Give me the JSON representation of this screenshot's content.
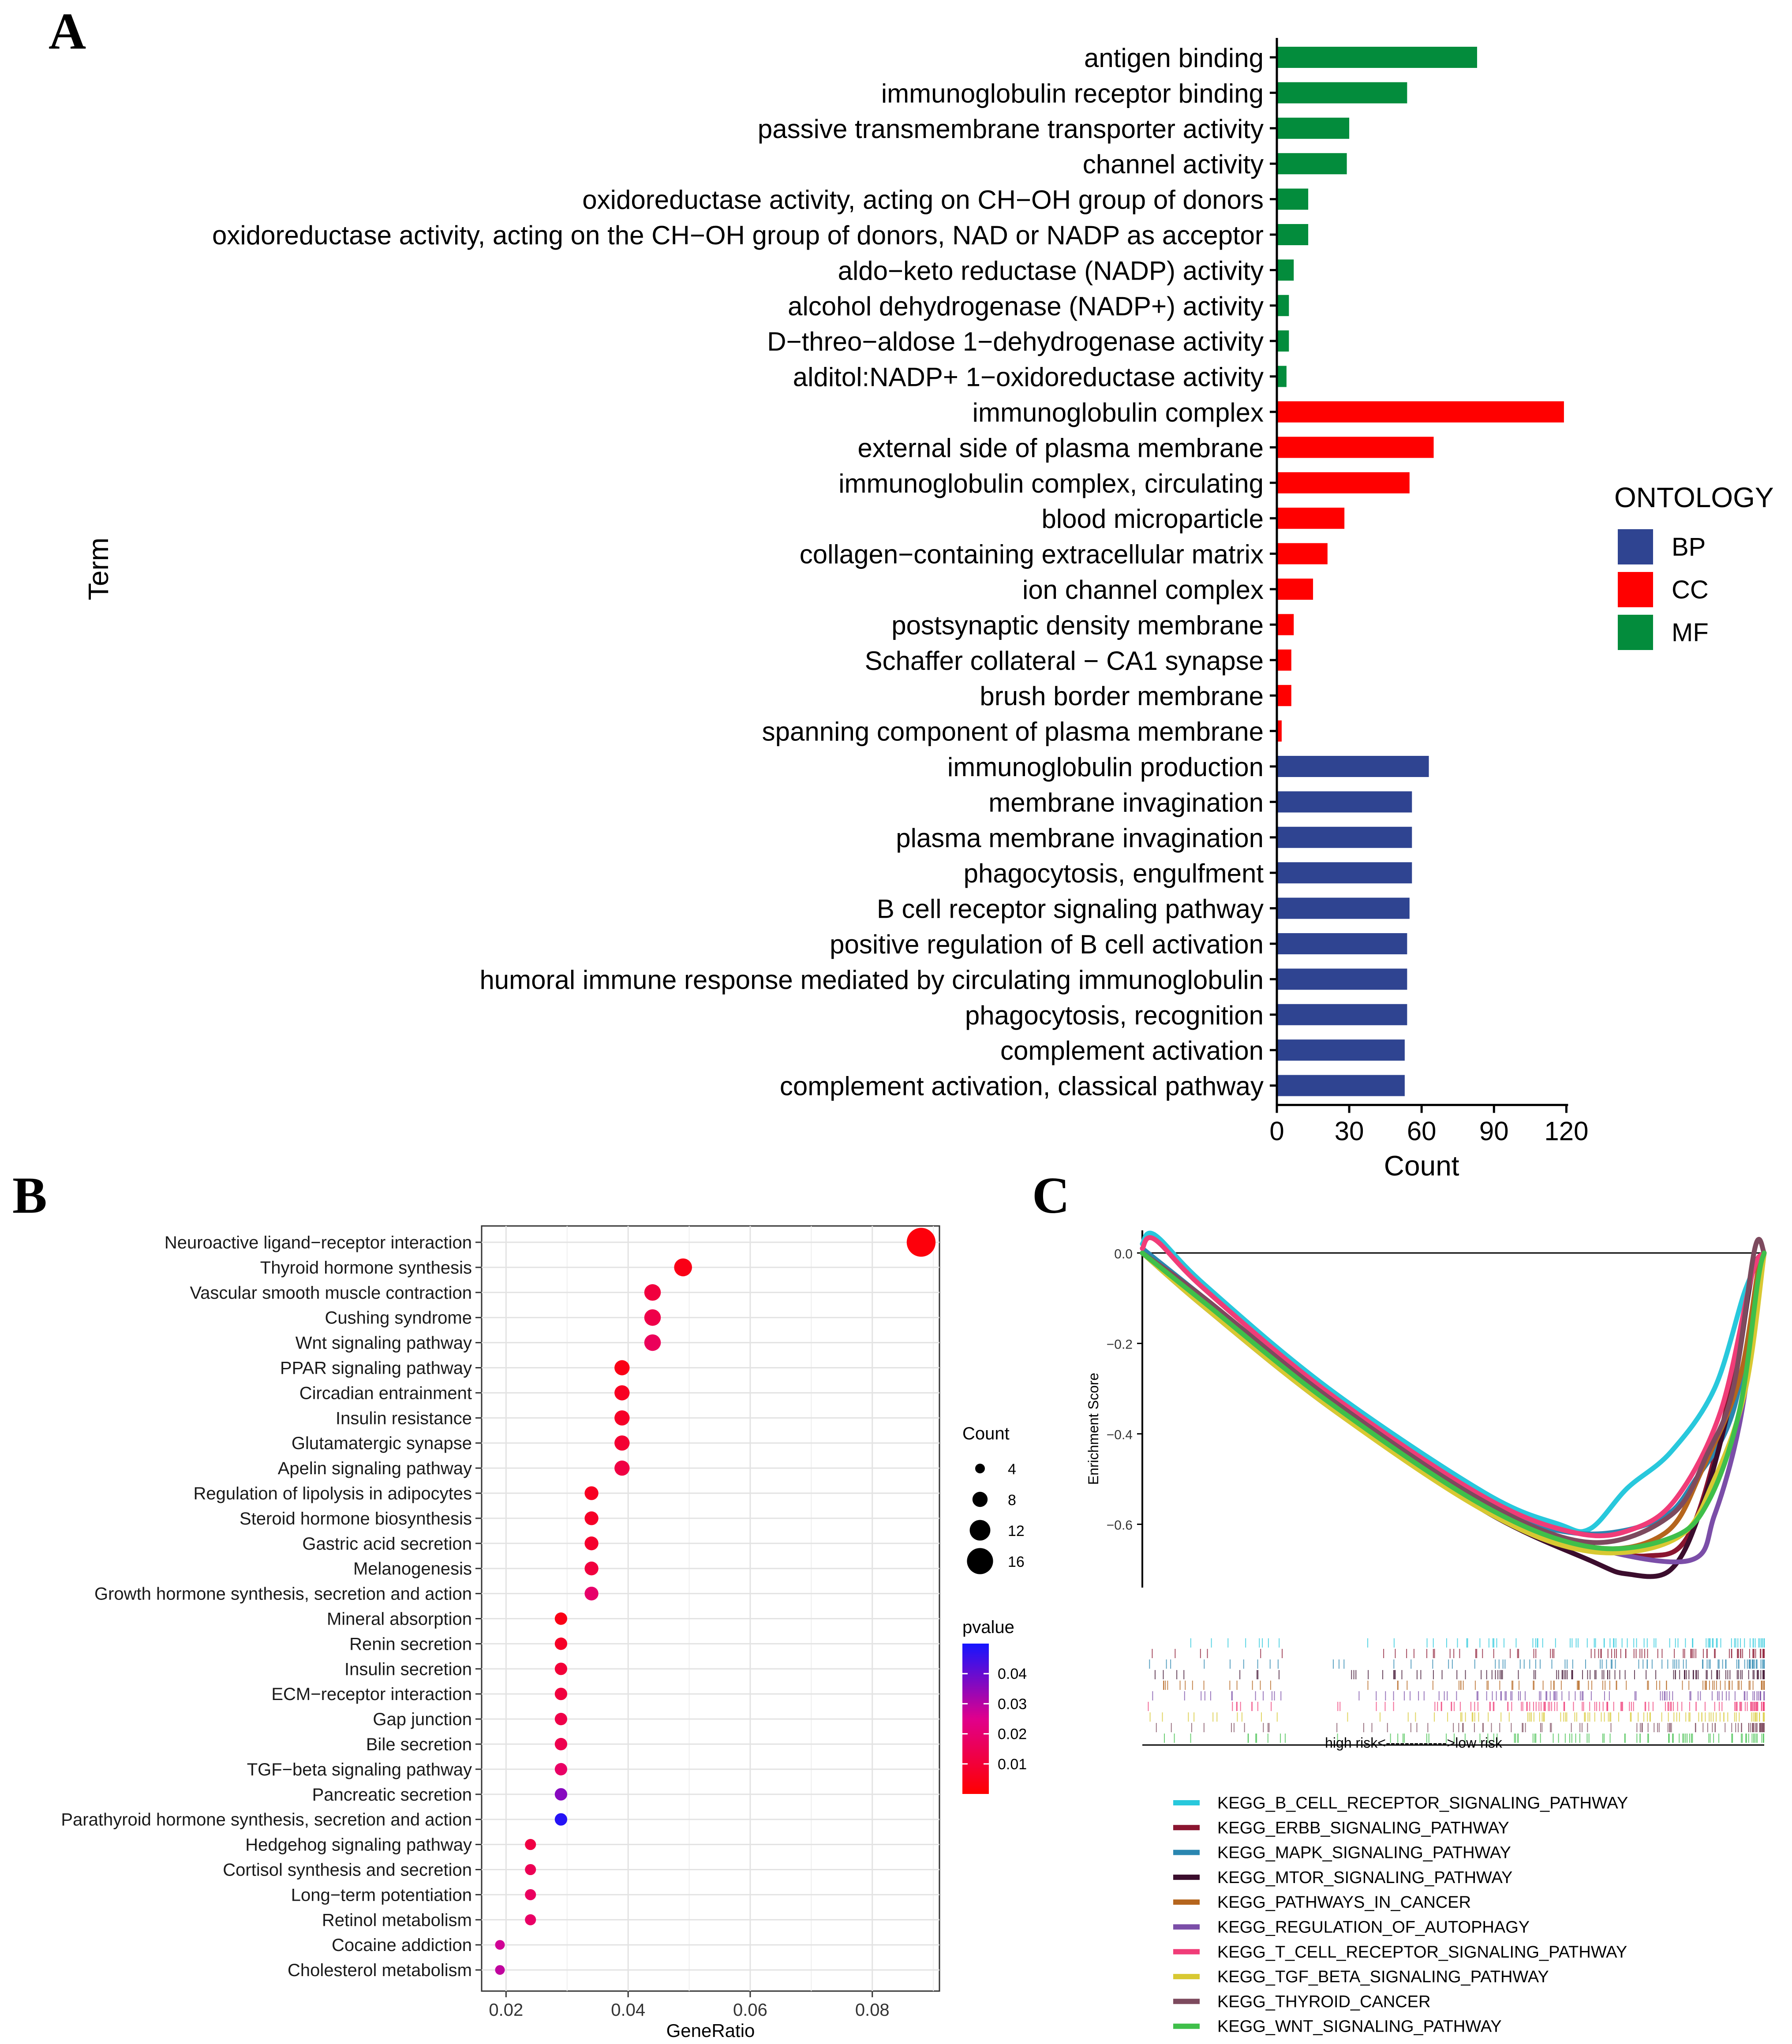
{
  "panels": {
    "a": "A",
    "b": "B",
    "c": "C"
  },
  "chart_data": [
    {
      "type": "bar",
      "orientation": "horizontal",
      "xlabel": "Count",
      "ylabel": "Term",
      "xlim": [
        0,
        120
      ],
      "xticks": [
        "0",
        "30",
        "60",
        "90",
        "120"
      ],
      "legend": {
        "title": "ONTOLOGY",
        "position": "right",
        "entries": [
          {
            "label": "BP",
            "color": "#2f4491"
          },
          {
            "label": "CC",
            "color": "#ff0000"
          },
          {
            "label": "MF",
            "color": "#038c3c"
          }
        ]
      },
      "bars": [
        {
          "term": "antigen binding",
          "ontology": "MF",
          "count": 83
        },
        {
          "term": "immunoglobulin receptor binding",
          "ontology": "MF",
          "count": 54
        },
        {
          "term": "passive transmembrane transporter activity",
          "ontology": "MF",
          "count": 30
        },
        {
          "term": "channel activity",
          "ontology": "MF",
          "count": 29
        },
        {
          "term": "oxidoreductase activity, acting on CH−OH group of donors",
          "ontology": "MF",
          "count": 13
        },
        {
          "term": "oxidoreductase activity, acting on the CH−OH group of donors, NAD or NADP as acceptor",
          "ontology": "MF",
          "count": 13
        },
        {
          "term": "aldo−keto reductase (NADP) activity",
          "ontology": "MF",
          "count": 7
        },
        {
          "term": "alcohol dehydrogenase (NADP+) activity",
          "ontology": "MF",
          "count": 5
        },
        {
          "term": "D−threo−aldose 1−dehydrogenase activity",
          "ontology": "MF",
          "count": 5
        },
        {
          "term": "alditol:NADP+ 1−oxidoreductase activity",
          "ontology": "MF",
          "count": 4
        },
        {
          "term": "immunoglobulin complex",
          "ontology": "CC",
          "count": 119
        },
        {
          "term": "external side of plasma membrane",
          "ontology": "CC",
          "count": 65
        },
        {
          "term": "immunoglobulin complex, circulating",
          "ontology": "CC",
          "count": 55
        },
        {
          "term": "blood microparticle",
          "ontology": "CC",
          "count": 28
        },
        {
          "term": "collagen−containing extracellular matrix",
          "ontology": "CC",
          "count": 21
        },
        {
          "term": "ion channel complex",
          "ontology": "CC",
          "count": 15
        },
        {
          "term": "postsynaptic density membrane",
          "ontology": "CC",
          "count": 7
        },
        {
          "term": "Schaffer collateral − CA1 synapse",
          "ontology": "CC",
          "count": 6
        },
        {
          "term": "brush border membrane",
          "ontology": "CC",
          "count": 6
        },
        {
          "term": "spanning component of plasma membrane",
          "ontology": "CC",
          "count": 2
        },
        {
          "term": "immunoglobulin production",
          "ontology": "BP",
          "count": 63
        },
        {
          "term": "membrane invagination",
          "ontology": "BP",
          "count": 56
        },
        {
          "term": "plasma membrane invagination",
          "ontology": "BP",
          "count": 56
        },
        {
          "term": "phagocytosis, engulfment",
          "ontology": "BP",
          "count": 56
        },
        {
          "term": "B cell receptor signaling pathway",
          "ontology": "BP",
          "count": 55
        },
        {
          "term": "positive regulation of B cell activation",
          "ontology": "BP",
          "count": 54
        },
        {
          "term": "humoral immune response mediated by circulating immunoglobulin",
          "ontology": "BP",
          "count": 54
        },
        {
          "term": "phagocytosis, recognition",
          "ontology": "BP",
          "count": 54
        },
        {
          "term": "complement activation",
          "ontology": "BP",
          "count": 53
        },
        {
          "term": "complement activation, classical pathway",
          "ontology": "BP",
          "count": 53
        }
      ]
    },
    {
      "type": "scatter",
      "subtype": "dotplot",
      "xlabel": "GeneRatio",
      "xlim": [
        0.016,
        0.091
      ],
      "xticks": [
        "0.02",
        "0.04",
        "0.06",
        "0.08"
      ],
      "grid": true,
      "size_legend": {
        "title": "Count",
        "entries": [
          4,
          8,
          12,
          16
        ]
      },
      "color_legend": {
        "title": "pvalue",
        "ticks": [
          "0.04",
          "0.03",
          "0.02",
          "0.01"
        ],
        "range": [
          0.0,
          0.05
        ],
        "low_color": "#ff0000",
        "mid_color": "#e0008c",
        "high_color": "#1515ff"
      },
      "points": [
        {
          "term": "Neuroactive ligand−receptor interaction",
          "gene_ratio": 0.088,
          "count": 18,
          "pvalue": 0.002
        },
        {
          "term": "Thyroid hormone synthesis",
          "gene_ratio": 0.049,
          "count": 10,
          "pvalue": 0.004
        },
        {
          "term": "Vascular smooth muscle contraction",
          "gene_ratio": 0.044,
          "count": 9,
          "pvalue": 0.011
        },
        {
          "term": "Cushing syndrome",
          "gene_ratio": 0.044,
          "count": 9,
          "pvalue": 0.013
        },
        {
          "term": "Wnt signaling pathway",
          "gene_ratio": 0.044,
          "count": 9,
          "pvalue": 0.016
        },
        {
          "term": "PPAR signaling pathway",
          "gene_ratio": 0.039,
          "count": 8,
          "pvalue": 0.004
        },
        {
          "term": "Circadian entrainment",
          "gene_ratio": 0.039,
          "count": 8,
          "pvalue": 0.006
        },
        {
          "term": "Insulin resistance",
          "gene_ratio": 0.039,
          "count": 8,
          "pvalue": 0.007
        },
        {
          "term": "Glutamatergic synapse",
          "gene_ratio": 0.039,
          "count": 8,
          "pvalue": 0.009
        },
        {
          "term": "Apelin signaling pathway",
          "gene_ratio": 0.039,
          "count": 8,
          "pvalue": 0.012
        },
        {
          "term": "Regulation of lipolysis in adipocytes",
          "gene_ratio": 0.034,
          "count": 7,
          "pvalue": 0.006
        },
        {
          "term": "Steroid hormone biosynthesis",
          "gene_ratio": 0.034,
          "count": 7,
          "pvalue": 0.007
        },
        {
          "term": "Gastric acid secretion",
          "gene_ratio": 0.034,
          "count": 7,
          "pvalue": 0.008
        },
        {
          "term": "Melanogenesis",
          "gene_ratio": 0.034,
          "count": 7,
          "pvalue": 0.011
        },
        {
          "term": "Growth hormone synthesis, secretion and action",
          "gene_ratio": 0.034,
          "count": 7,
          "pvalue": 0.019
        },
        {
          "term": "Mineral absorption",
          "gene_ratio": 0.029,
          "count": 6,
          "pvalue": 0.004
        },
        {
          "term": "Renin secretion",
          "gene_ratio": 0.029,
          "count": 6,
          "pvalue": 0.007
        },
        {
          "term": "Insulin secretion",
          "gene_ratio": 0.029,
          "count": 6,
          "pvalue": 0.01
        },
        {
          "term": "ECM−receptor interaction",
          "gene_ratio": 0.029,
          "count": 6,
          "pvalue": 0.011
        },
        {
          "term": "Gap junction",
          "gene_ratio": 0.029,
          "count": 6,
          "pvalue": 0.013
        },
        {
          "term": "Bile secretion",
          "gene_ratio": 0.029,
          "count": 6,
          "pvalue": 0.014
        },
        {
          "term": "TGF−beta signaling pathway",
          "gene_ratio": 0.029,
          "count": 6,
          "pvalue": 0.018
        },
        {
          "term": "Pancreatic secretion",
          "gene_ratio": 0.029,
          "count": 6,
          "pvalue": 0.036
        },
        {
          "term": "Parathyroid hormone synthesis, secretion and action",
          "gene_ratio": 0.029,
          "count": 6,
          "pvalue": 0.048
        },
        {
          "term": "Hedgehog signaling pathway",
          "gene_ratio": 0.024,
          "count": 5,
          "pvalue": 0.012
        },
        {
          "term": "Cortisol synthesis and secretion",
          "gene_ratio": 0.024,
          "count": 5,
          "pvalue": 0.015
        },
        {
          "term": "Long−term potentiation",
          "gene_ratio": 0.024,
          "count": 5,
          "pvalue": 0.017
        },
        {
          "term": "Retinol metabolism",
          "gene_ratio": 0.024,
          "count": 5,
          "pvalue": 0.018
        },
        {
          "term": "Cocaine addiction",
          "gene_ratio": 0.019,
          "count": 4,
          "pvalue": 0.027
        },
        {
          "term": "Cholesterol metabolism",
          "gene_ratio": 0.019,
          "count": 4,
          "pvalue": 0.029
        }
      ]
    },
    {
      "type": "line",
      "subtype": "gsea",
      "ylabel": "Enrichment Score",
      "yticks": [
        "0.0",
        "−0.2",
        "−0.4",
        "−0.6"
      ],
      "ylim": [
        -0.74,
        0.05
      ],
      "xrange": [
        0,
        1
      ],
      "x_annotation": "high risk<------------->low risk",
      "series": [
        {
          "name": "KEGG_B_CELL_RECEPTOR_SIGNALING_PATHWAY",
          "color": "#28c8dc",
          "points": [
            [
              0,
              0.02
            ],
            [
              0.02,
              0.04
            ],
            [
              0.1,
              -0.07
            ],
            [
              0.3,
              -0.3
            ],
            [
              0.55,
              -0.53
            ],
            [
              0.67,
              -0.6
            ],
            [
              0.72,
              -0.61
            ],
            [
              0.78,
              -0.52
            ],
            [
              0.85,
              -0.44
            ],
            [
              0.92,
              -0.3
            ],
            [
              0.97,
              -0.08
            ],
            [
              1,
              0
            ]
          ]
        },
        {
          "name": "KEGG_ERBB_SIGNALING_PATHWAY",
          "color": "#8a1530",
          "points": [
            [
              0,
              0
            ],
            [
              0.1,
              -0.11
            ],
            [
              0.3,
              -0.33
            ],
            [
              0.55,
              -0.56
            ],
            [
              0.7,
              -0.64
            ],
            [
              0.81,
              -0.67
            ],
            [
              0.88,
              -0.62
            ],
            [
              0.94,
              -0.34
            ],
            [
              0.98,
              -0.05
            ],
            [
              1,
              0
            ]
          ]
        },
        {
          "name": "KEGG_MAPK_SIGNALING_PATHWAY",
          "color": "#2a86b0",
          "points": [
            [
              0,
              0.01
            ],
            [
              0.1,
              -0.1
            ],
            [
              0.3,
              -0.32
            ],
            [
              0.55,
              -0.55
            ],
            [
              0.7,
              -0.62
            ],
            [
              0.83,
              -0.59
            ],
            [
              0.89,
              -0.5
            ],
            [
              0.95,
              -0.35
            ],
            [
              0.99,
              -0.05
            ],
            [
              1,
              0
            ]
          ]
        },
        {
          "name": "KEGG_MTOR_SIGNALING_PATHWAY",
          "color": "#3b0d2d",
          "points": [
            [
              0,
              0
            ],
            [
              0.1,
              -0.12
            ],
            [
              0.3,
              -0.34
            ],
            [
              0.55,
              -0.57
            ],
            [
              0.72,
              -0.68
            ],
            [
              0.78,
              -0.71
            ],
            [
              0.85,
              -0.7
            ],
            [
              0.9,
              -0.56
            ],
            [
              0.95,
              -0.3
            ],
            [
              0.98,
              -0.05
            ],
            [
              1,
              0
            ]
          ]
        },
        {
          "name": "KEGG_PATHWAYS_IN_CANCER",
          "color": "#b5651d",
          "points": [
            [
              0,
              0
            ],
            [
              0.1,
              -0.1
            ],
            [
              0.3,
              -0.32
            ],
            [
              0.55,
              -0.55
            ],
            [
              0.72,
              -0.65
            ],
            [
              0.84,
              -0.62
            ],
            [
              0.9,
              -0.48
            ],
            [
              0.96,
              -0.28
            ],
            [
              0.99,
              -0.04
            ],
            [
              1,
              0
            ]
          ]
        },
        {
          "name": "KEGG_REGULATION_OF_AUTOPHAGY",
          "color": "#7b4ea8",
          "points": [
            [
              0,
              0
            ],
            [
              0.1,
              -0.11
            ],
            [
              0.3,
              -0.33
            ],
            [
              0.55,
              -0.56
            ],
            [
              0.72,
              -0.65
            ],
            [
              0.88,
              -0.68
            ],
            [
              0.92,
              -0.58
            ],
            [
              0.96,
              -0.38
            ],
            [
              0.99,
              -0.1
            ],
            [
              1,
              0
            ]
          ]
        },
        {
          "name": "KEGG_T_CELL_RECEPTOR_SIGNALING_PATHWAY",
          "color": "#f03c78",
          "points": [
            [
              0,
              0.01
            ],
            [
              0.02,
              0.03
            ],
            [
              0.1,
              -0.08
            ],
            [
              0.3,
              -0.31
            ],
            [
              0.55,
              -0.54
            ],
            [
              0.7,
              -0.62
            ],
            [
              0.79,
              -0.61
            ],
            [
              0.86,
              -0.54
            ],
            [
              0.93,
              -0.35
            ],
            [
              0.98,
              -0.05
            ],
            [
              1,
              0
            ]
          ]
        },
        {
          "name": "KEGG_TGF_BETA_SIGNALING_PATHWAY",
          "color": "#d8c832",
          "points": [
            [
              0,
              0
            ],
            [
              0.1,
              -0.12
            ],
            [
              0.3,
              -0.34
            ],
            [
              0.55,
              -0.57
            ],
            [
              0.72,
              -0.66
            ],
            [
              0.86,
              -0.63
            ],
            [
              0.92,
              -0.5
            ],
            [
              0.97,
              -0.3
            ],
            [
              1,
              0
            ]
          ]
        },
        {
          "name": "KEGG_THYROID_CANCER",
          "color": "#7d4a5e",
          "points": [
            [
              0,
              0
            ],
            [
              0.1,
              -0.1
            ],
            [
              0.3,
              -0.32
            ],
            [
              0.55,
              -0.55
            ],
            [
              0.72,
              -0.64
            ],
            [
              0.85,
              -0.58
            ],
            [
              0.91,
              -0.44
            ],
            [
              0.95,
              -0.3
            ],
            [
              0.985,
              0.01
            ],
            [
              1,
              0
            ]
          ]
        },
        {
          "name": "KEGG_WNT_SIGNALING_PATHWAY",
          "color": "#3fbf4a",
          "points": [
            [
              0,
              0
            ],
            [
              0.1,
              -0.11
            ],
            [
              0.3,
              -0.33
            ],
            [
              0.55,
              -0.56
            ],
            [
              0.72,
              -0.65
            ],
            [
              0.85,
              -0.63
            ],
            [
              0.91,
              -0.55
            ],
            [
              0.96,
              -0.35
            ],
            [
              0.99,
              -0.06
            ],
            [
              1,
              0
            ]
          ]
        }
      ]
    }
  ]
}
